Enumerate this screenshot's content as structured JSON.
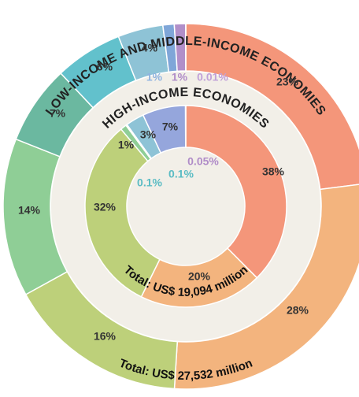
{
  "chart_data": [
    {
      "type": "pie",
      "title": "LOW-INCOME AND MIDDLE-INCOME ECONOMIES",
      "total": "Total: US$ 27,532 million",
      "values": [
        23,
        28,
        16,
        14,
        7,
        6,
        4,
        1,
        1,
        0.01
      ],
      "value_labels": [
        "23%",
        "28%",
        "16%",
        "14%",
        "7%",
        "6%",
        "4%",
        "1%",
        "1%",
        "0.01%"
      ],
      "colors": [
        "#f4967a",
        "#f3b47e",
        "#bdd07a",
        "#8fce96",
        "#6bb8a0",
        "#62c1cc",
        "#8ec3d6",
        "#7fa6d8",
        "#b18fc9",
        "#c8b0dc"
      ]
    },
    {
      "type": "pie",
      "title": "HIGH-INCOME ECONOMIES",
      "total": "Total: US$ 19,094 million",
      "values": [
        38,
        20,
        32,
        1,
        0.1,
        0.1,
        3,
        7,
        0.05
      ],
      "value_labels": [
        "38%",
        "20%",
        "32%",
        "1%",
        "0.1%",
        "0.1%",
        "3%",
        "7%",
        "0.05%"
      ],
      "colors": [
        "#f4967a",
        "#f3b47e",
        "#bdd07a",
        "#8fce96",
        "#6bb8a0",
        "#62c1cc",
        "#8ec3d6",
        "#95a6dc",
        "#b99bd4"
      ]
    }
  ]
}
